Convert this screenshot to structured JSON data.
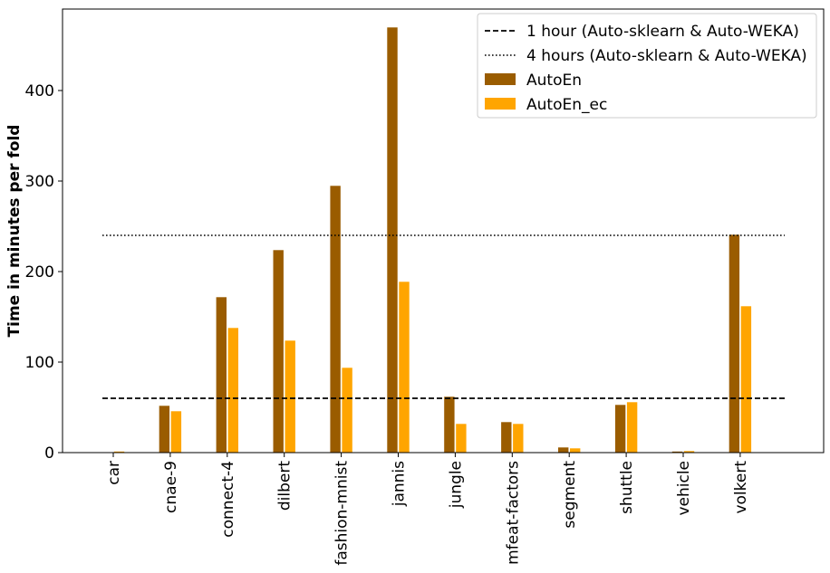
{
  "chart_data": {
    "type": "bar",
    "ylabel": "Time in minutes per fold",
    "xlabel": "",
    "ylim": [
      0,
      490
    ],
    "yticks": [
      0,
      100,
      200,
      300,
      400
    ],
    "grid": false,
    "legend_position": "top-right",
    "categories": [
      "car",
      "cnae-9",
      "connect-4",
      "dilbert",
      "fashion-mnist",
      "jannis",
      "jungle",
      "mfeat-factors",
      "segment",
      "shuttle",
      "vehicle",
      "volkert"
    ],
    "series": [
      {
        "name": "AutoEn",
        "color": "#9a5c00",
        "values": [
          0.5,
          52,
          172,
          224,
          295,
          470,
          62,
          34,
          6,
          53,
          1.5,
          241
        ]
      },
      {
        "name": "AutoEn_ec",
        "color": "#ffa500",
        "values": [
          1.5,
          46,
          138,
          124,
          94,
          189,
          32,
          32,
          5,
          56,
          2,
          162
        ]
      }
    ],
    "reference_lines": [
      {
        "name": "1 hour (Auto-sklearn & Auto-WEKA)",
        "value": 60,
        "style": "dashed",
        "color": "#000000"
      },
      {
        "name": "4 hours (Auto-sklearn & Auto-WEKA)",
        "value": 240,
        "style": "dotted",
        "color": "#000000"
      }
    ]
  }
}
